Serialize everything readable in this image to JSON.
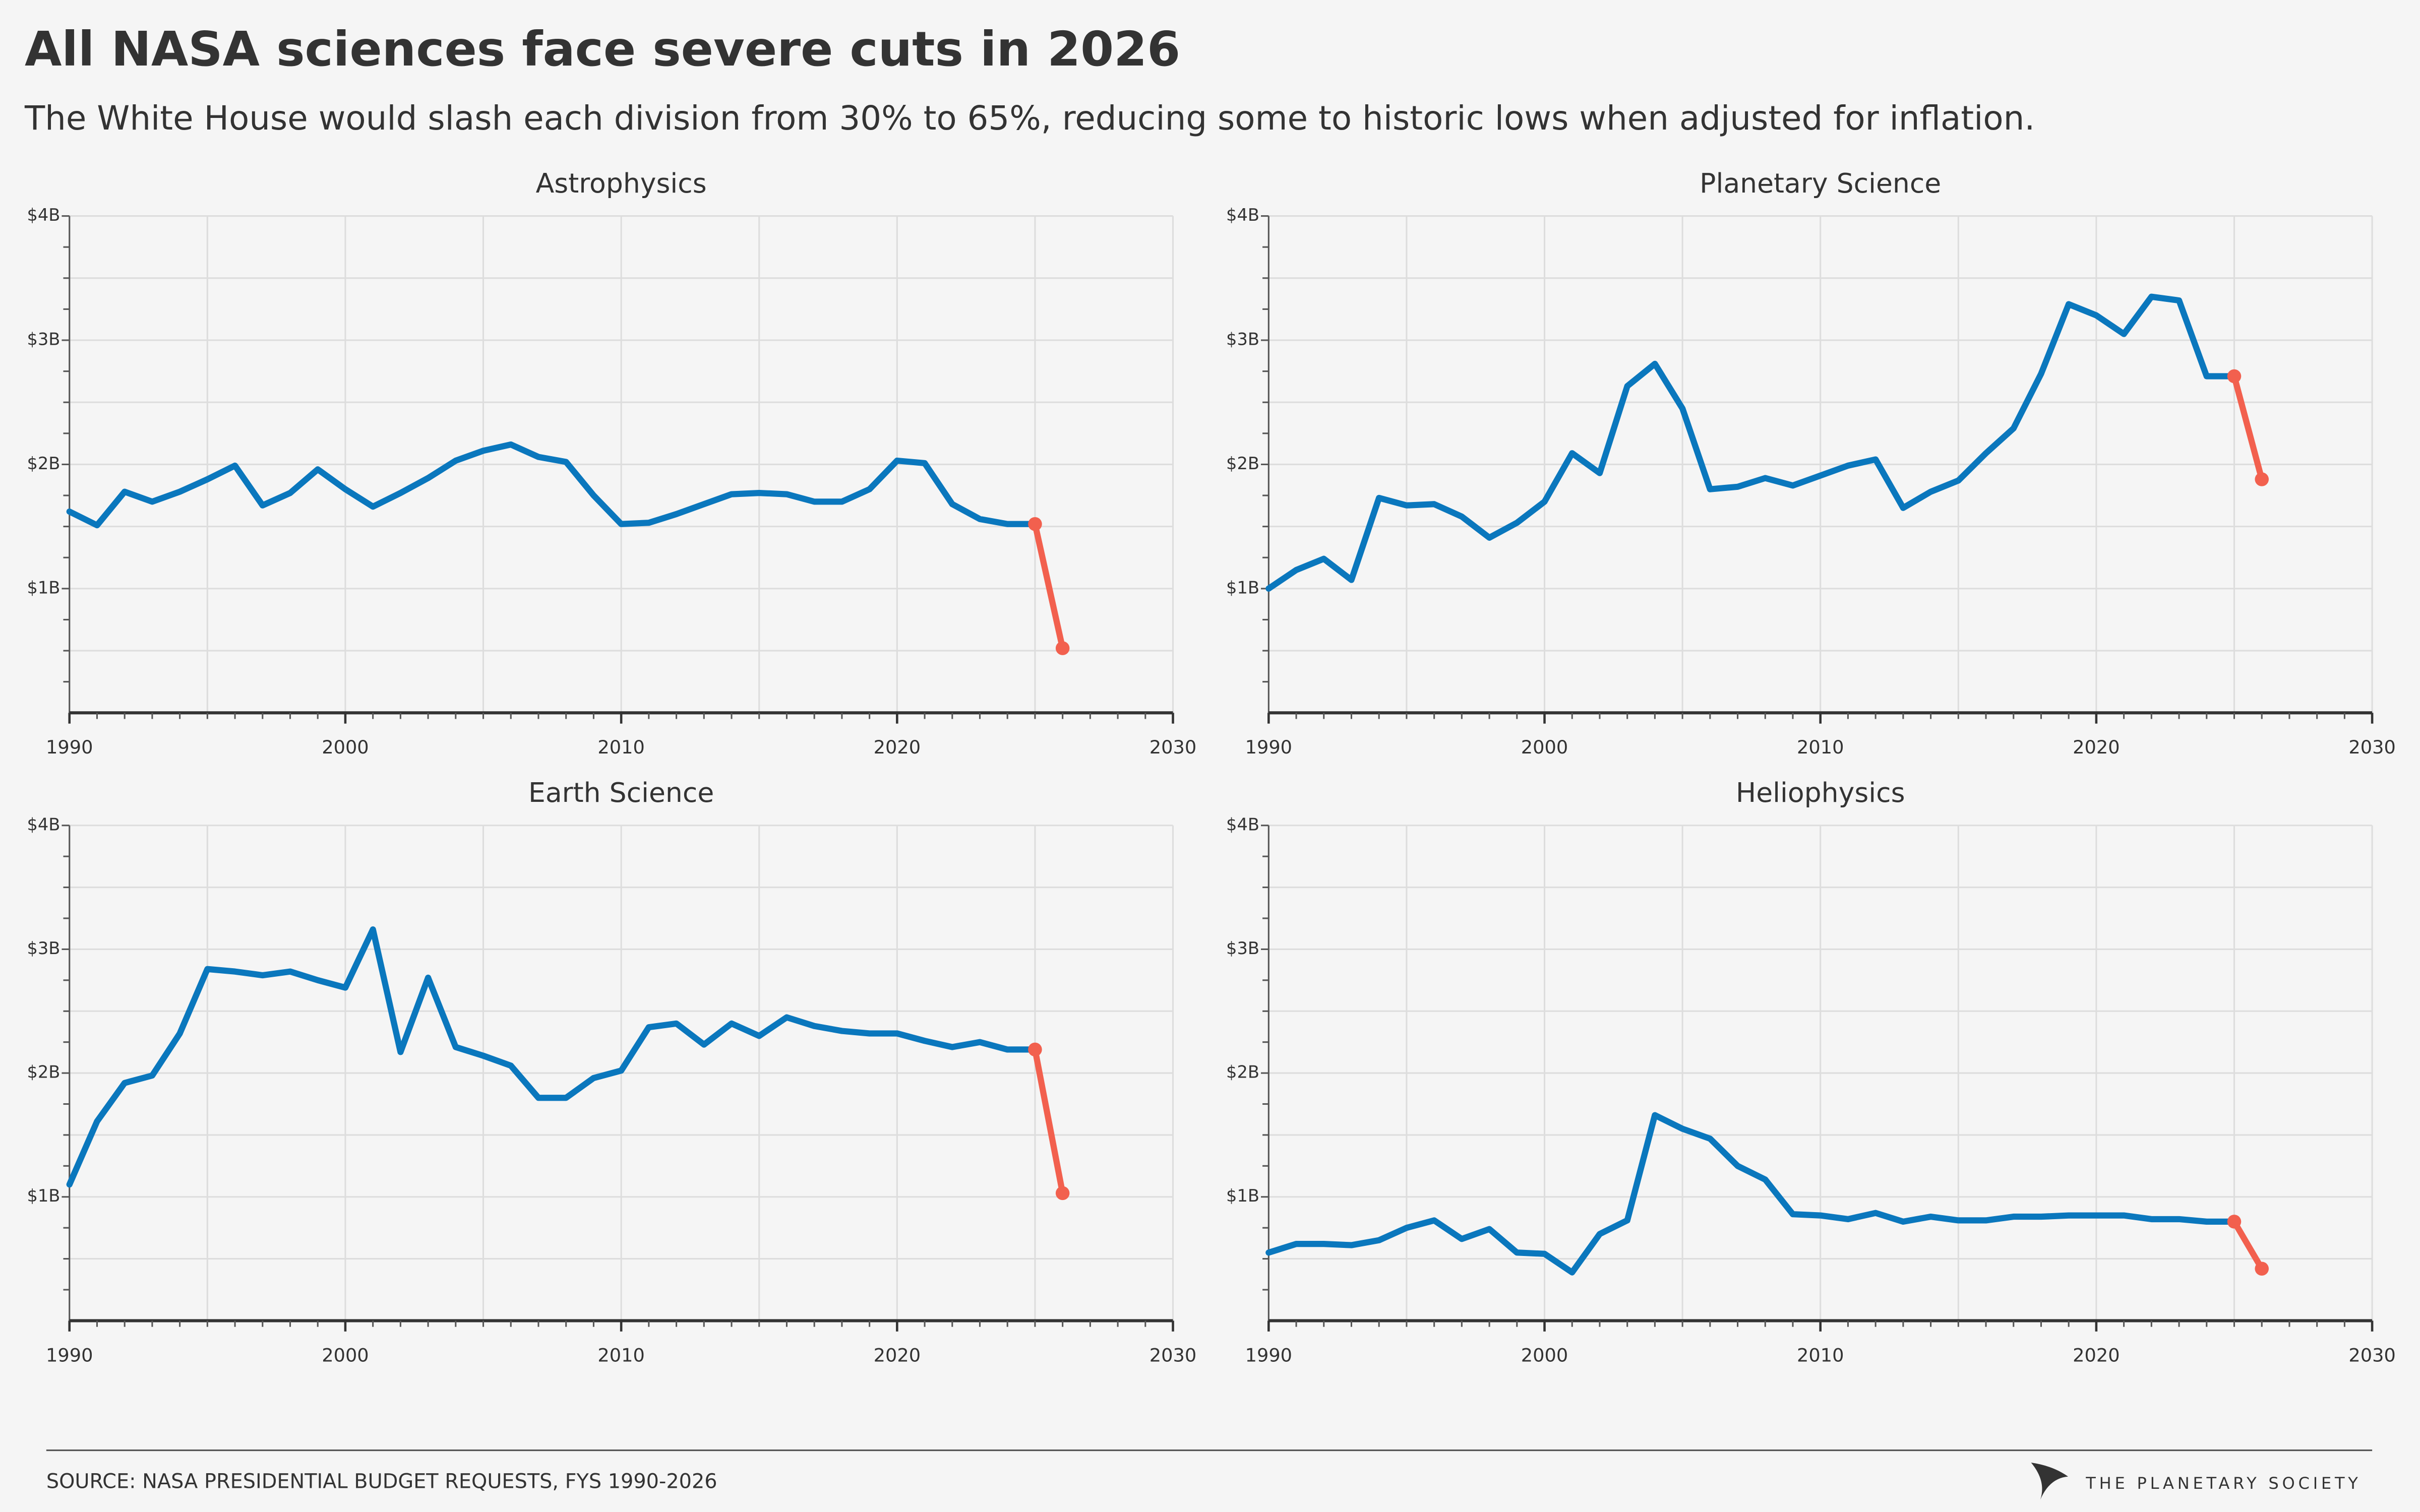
{
  "header": {
    "title": "All NASA sciences face severe cuts in 2026",
    "subtitle": "The White House would slash each division from 30% to 65%, reducing some to historic lows when adjusted for inflation."
  },
  "footer": {
    "source": "SOURCE: NASA PRESIDENTIAL BUDGET REQUESTS, FYS 1990-2026",
    "logo": "THE PLANETARY SOCIETY"
  },
  "chart_data": [
    {
      "type": "line",
      "title": "Astrophysics",
      "x": [
        1990,
        1991,
        1992,
        1993,
        1994,
        1995,
        1996,
        1997,
        1998,
        1999,
        2000,
        2001,
        2002,
        2003,
        2004,
        2005,
        2006,
        2007,
        2008,
        2009,
        2010,
        2011,
        2012,
        2013,
        2014,
        2015,
        2016,
        2017,
        2018,
        2019,
        2020,
        2021,
        2022,
        2023,
        2024,
        2025,
        2026
      ],
      "series": [
        {
          "color": "#0a77bd",
          "values": [
            1.62,
            1.51,
            1.78,
            1.7,
            1.78,
            1.88,
            1.99,
            1.67,
            1.77,
            1.96,
            1.8,
            1.66,
            1.77,
            1.89,
            2.03,
            2.11,
            2.16,
            2.06,
            2.02,
            1.75,
            1.52,
            1.53,
            1.6,
            1.68,
            1.76,
            1.77,
            1.76,
            1.7,
            1.7,
            1.8,
            2.03,
            2.01,
            1.68,
            1.56,
            1.52,
            1.52,
            null
          ]
        },
        {
          "color": "#f2604e",
          "markers": true,
          "values": [
            null,
            null,
            null,
            null,
            null,
            null,
            null,
            null,
            null,
            null,
            null,
            null,
            null,
            null,
            null,
            null,
            null,
            null,
            null,
            null,
            null,
            null,
            null,
            null,
            null,
            null,
            null,
            null,
            null,
            null,
            null,
            null,
            null,
            null,
            null,
            1.52,
            0.52
          ]
        }
      ],
      "xlim": [
        1990,
        2030
      ],
      "xticks": [
        1990,
        2000,
        2010,
        2020,
        2030
      ],
      "xgrid": [
        1990,
        1995,
        2000,
        2005,
        2010,
        2015,
        2020,
        2025,
        2030
      ],
      "xminorticks": [
        1991,
        1992,
        1993,
        1994,
        1995,
        1996,
        1997,
        1998,
        1999,
        2001,
        2002,
        2003,
        2004,
        2005,
        2006,
        2007,
        2008,
        2009,
        2011,
        2012,
        2013,
        2014,
        2015,
        2016,
        2017,
        2018,
        2019,
        2021,
        2022,
        2023,
        2024,
        2025,
        2026,
        2027,
        2028,
        2029
      ],
      "ylim": [
        0,
        4
      ],
      "yticks": [
        {
          "value": 1,
          "label": "$1B"
        },
        {
          "value": 2,
          "label": "$2B"
        },
        {
          "value": 3,
          "label": "$3B"
        },
        {
          "value": 4,
          "label": "$4B"
        }
      ],
      "ygrid": [
        0.5,
        1,
        1.5,
        2,
        2.5,
        3,
        3.5,
        4
      ],
      "yminorticks": [
        0.25,
        0.5,
        0.75,
        1.25,
        1.5,
        1.75,
        2.25,
        2.5,
        2.75,
        3.25,
        3.5,
        3.75
      ],
      "grid": true
    },
    {
      "type": "line",
      "title": "Planetary Science",
      "x": [
        1990,
        1991,
        1992,
        1993,
        1994,
        1995,
        1996,
        1997,
        1998,
        1999,
        2000,
        2001,
        2002,
        2003,
        2004,
        2005,
        2006,
        2007,
        2008,
        2009,
        2010,
        2011,
        2012,
        2013,
        2014,
        2015,
        2016,
        2017,
        2018,
        2019,
        2020,
        2021,
        2022,
        2023,
        2024,
        2025,
        2026
      ],
      "series": [
        {
          "color": "#0a77bd",
          "values": [
            1.0,
            1.15,
            1.24,
            1.07,
            1.73,
            1.67,
            1.68,
            1.58,
            1.41,
            1.53,
            1.7,
            2.09,
            1.93,
            2.63,
            2.81,
            2.45,
            1.8,
            1.82,
            1.89,
            1.83,
            1.91,
            1.99,
            2.04,
            1.65,
            1.78,
            1.87,
            2.09,
            2.29,
            2.73,
            3.29,
            3.2,
            3.05,
            3.35,
            3.32,
            2.71,
            2.71,
            null
          ]
        },
        {
          "color": "#f2604e",
          "markers": true,
          "values": [
            null,
            null,
            null,
            null,
            null,
            null,
            null,
            null,
            null,
            null,
            null,
            null,
            null,
            null,
            null,
            null,
            null,
            null,
            null,
            null,
            null,
            null,
            null,
            null,
            null,
            null,
            null,
            null,
            null,
            null,
            null,
            null,
            null,
            null,
            null,
            2.71,
            1.88
          ]
        }
      ],
      "xlim": [
        1990,
        2030
      ],
      "xticks": [
        1990,
        2000,
        2010,
        2020,
        2030
      ],
      "xgrid": [
        1990,
        1995,
        2000,
        2005,
        2010,
        2015,
        2020,
        2025,
        2030
      ],
      "xminorticks": [
        1991,
        1992,
        1993,
        1994,
        1995,
        1996,
        1997,
        1998,
        1999,
        2001,
        2002,
        2003,
        2004,
        2005,
        2006,
        2007,
        2008,
        2009,
        2011,
        2012,
        2013,
        2014,
        2015,
        2016,
        2017,
        2018,
        2019,
        2021,
        2022,
        2023,
        2024,
        2025,
        2026,
        2027,
        2028,
        2029
      ],
      "ylim": [
        0,
        4
      ],
      "yticks": [
        {
          "value": 1,
          "label": "$1B"
        },
        {
          "value": 2,
          "label": "$2B"
        },
        {
          "value": 3,
          "label": "$3B"
        },
        {
          "value": 4,
          "label": "$4B"
        }
      ],
      "ygrid": [
        0.5,
        1,
        1.5,
        2,
        2.5,
        3,
        3.5,
        4
      ],
      "yminorticks": [
        0.25,
        0.5,
        0.75,
        1.25,
        1.5,
        1.75,
        2.25,
        2.5,
        2.75,
        3.25,
        3.5,
        3.75
      ],
      "grid": true
    },
    {
      "type": "line",
      "title": "Earth Science",
      "x": [
        1990,
        1991,
        1992,
        1993,
        1994,
        1995,
        1996,
        1997,
        1998,
        1999,
        2000,
        2001,
        2002,
        2003,
        2004,
        2005,
        2006,
        2007,
        2008,
        2009,
        2010,
        2011,
        2012,
        2013,
        2014,
        2015,
        2016,
        2017,
        2018,
        2019,
        2020,
        2021,
        2022,
        2023,
        2024,
        2025,
        2026
      ],
      "series": [
        {
          "color": "#0a77bd",
          "values": [
            1.1,
            1.61,
            1.92,
            1.98,
            2.32,
            2.84,
            2.82,
            2.79,
            2.82,
            2.75,
            2.69,
            3.16,
            2.17,
            2.77,
            2.21,
            2.14,
            2.06,
            1.8,
            1.8,
            1.96,
            2.02,
            2.37,
            2.4,
            2.23,
            2.4,
            2.3,
            2.45,
            2.38,
            2.34,
            2.32,
            2.32,
            2.26,
            2.21,
            2.25,
            2.19,
            2.19,
            null
          ]
        },
        {
          "color": "#f2604e",
          "markers": true,
          "values": [
            null,
            null,
            null,
            null,
            null,
            null,
            null,
            null,
            null,
            null,
            null,
            null,
            null,
            null,
            null,
            null,
            null,
            null,
            null,
            null,
            null,
            null,
            null,
            null,
            null,
            null,
            null,
            null,
            null,
            null,
            null,
            null,
            null,
            null,
            null,
            2.19,
            1.03
          ]
        }
      ],
      "xlim": [
        1990,
        2030
      ],
      "xticks": [
        1990,
        2000,
        2010,
        2020,
        2030
      ],
      "xgrid": [
        1990,
        1995,
        2000,
        2005,
        2010,
        2015,
        2020,
        2025,
        2030
      ],
      "xminorticks": [
        1991,
        1992,
        1993,
        1994,
        1995,
        1996,
        1997,
        1998,
        1999,
        2001,
        2002,
        2003,
        2004,
        2005,
        2006,
        2007,
        2008,
        2009,
        2011,
        2012,
        2013,
        2014,
        2015,
        2016,
        2017,
        2018,
        2019,
        2021,
        2022,
        2023,
        2024,
        2025,
        2026,
        2027,
        2028,
        2029
      ],
      "ylim": [
        0,
        4
      ],
      "yticks": [
        {
          "value": 1,
          "label": "$1B"
        },
        {
          "value": 2,
          "label": "$2B"
        },
        {
          "value": 3,
          "label": "$3B"
        },
        {
          "value": 4,
          "label": "$4B"
        }
      ],
      "ygrid": [
        0.5,
        1,
        1.5,
        2,
        2.5,
        3,
        3.5,
        4
      ],
      "yminorticks": [
        0.25,
        0.5,
        0.75,
        1.25,
        1.5,
        1.75,
        2.25,
        2.5,
        2.75,
        3.25,
        3.5,
        3.75
      ],
      "grid": true
    },
    {
      "type": "line",
      "title": "Heliophysics",
      "x": [
        1990,
        1991,
        1992,
        1993,
        1994,
        1995,
        1996,
        1997,
        1998,
        1999,
        2000,
        2001,
        2002,
        2003,
        2004,
        2005,
        2006,
        2007,
        2008,
        2009,
        2010,
        2011,
        2012,
        2013,
        2014,
        2015,
        2016,
        2017,
        2018,
        2019,
        2020,
        2021,
        2022,
        2023,
        2024,
        2025,
        2026
      ],
      "series": [
        {
          "color": "#0a77bd",
          "values": [
            0.55,
            0.62,
            0.62,
            0.61,
            0.65,
            0.75,
            0.81,
            0.66,
            0.74,
            0.55,
            0.54,
            0.39,
            0.7,
            0.81,
            1.66,
            1.55,
            1.47,
            1.25,
            1.14,
            0.86,
            0.85,
            0.82,
            0.87,
            0.8,
            0.84,
            0.81,
            0.81,
            0.84,
            0.84,
            0.85,
            0.85,
            0.85,
            0.82,
            0.82,
            0.8,
            0.8,
            null
          ]
        },
        {
          "color": "#f2604e",
          "markers": true,
          "values": [
            null,
            null,
            null,
            null,
            null,
            null,
            null,
            null,
            null,
            null,
            null,
            null,
            null,
            null,
            null,
            null,
            null,
            null,
            null,
            null,
            null,
            null,
            null,
            null,
            null,
            null,
            null,
            null,
            null,
            null,
            null,
            null,
            null,
            null,
            null,
            0.8,
            0.42
          ]
        }
      ],
      "xlim": [
        1990,
        2030
      ],
      "xticks": [
        1990,
        2000,
        2010,
        2020,
        2030
      ],
      "xgrid": [
        1990,
        1995,
        2000,
        2005,
        2010,
        2015,
        2020,
        2025,
        2030
      ],
      "xminorticks": [
        1991,
        1992,
        1993,
        1994,
        1995,
        1996,
        1997,
        1998,
        1999,
        2001,
        2002,
        2003,
        2004,
        2005,
        2006,
        2007,
        2008,
        2009,
        2011,
        2012,
        2013,
        2014,
        2015,
        2016,
        2017,
        2018,
        2019,
        2021,
        2022,
        2023,
        2024,
        2025,
        2026,
        2027,
        2028,
        2029
      ],
      "ylim": [
        0,
        4
      ],
      "yticks": [
        {
          "value": 1,
          "label": "$1B"
        },
        {
          "value": 2,
          "label": "$2B"
        },
        {
          "value": 3,
          "label": "$3B"
        },
        {
          "value": 4,
          "label": "$4B"
        }
      ],
      "ygrid": [
        0.5,
        1,
        1.5,
        2,
        2.5,
        3,
        3.5,
        4
      ],
      "yminorticks": [
        0.25,
        0.5,
        0.75,
        1.25,
        1.5,
        1.75,
        2.25,
        2.5,
        2.75,
        3.25,
        3.5,
        3.75
      ],
      "grid": true
    }
  ]
}
